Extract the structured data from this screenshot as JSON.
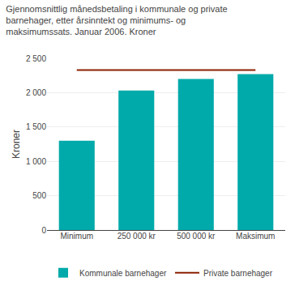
{
  "chart_data": {
    "type": "bar",
    "title": "Gjennomsnittlig månedsbetaling i kommunale og private\nbarnehager, etter årsinntekt og minimums- og\nmaksimumssats. Januar 2006. Kroner",
    "ylabel": "Kroner",
    "categories": [
      "Minimum",
      "250 000 kr",
      "500 000 kr",
      "Maksimum"
    ],
    "series": [
      {
        "name": "Kommunale barnehager",
        "type": "bar",
        "color": "#00AAAA",
        "values": [
          1300,
          2030,
          2200,
          2270
        ]
      },
      {
        "name": "Private barnehager",
        "type": "line",
        "color": "#8B2000",
        "values": [
          2330,
          2330,
          2330,
          2330
        ]
      }
    ],
    "ylim": [
      0,
      2500
    ],
    "yticks": [
      0,
      500,
      {
        "value": 1000,
        "label": "1 000"
      },
      {
        "value": 1500,
        "label": "1 500"
      },
      {
        "value": 2000,
        "label": "2 000"
      },
      {
        "value": 2500,
        "label": "2 500"
      }
    ],
    "grid": true,
    "legend": "bottom"
  }
}
